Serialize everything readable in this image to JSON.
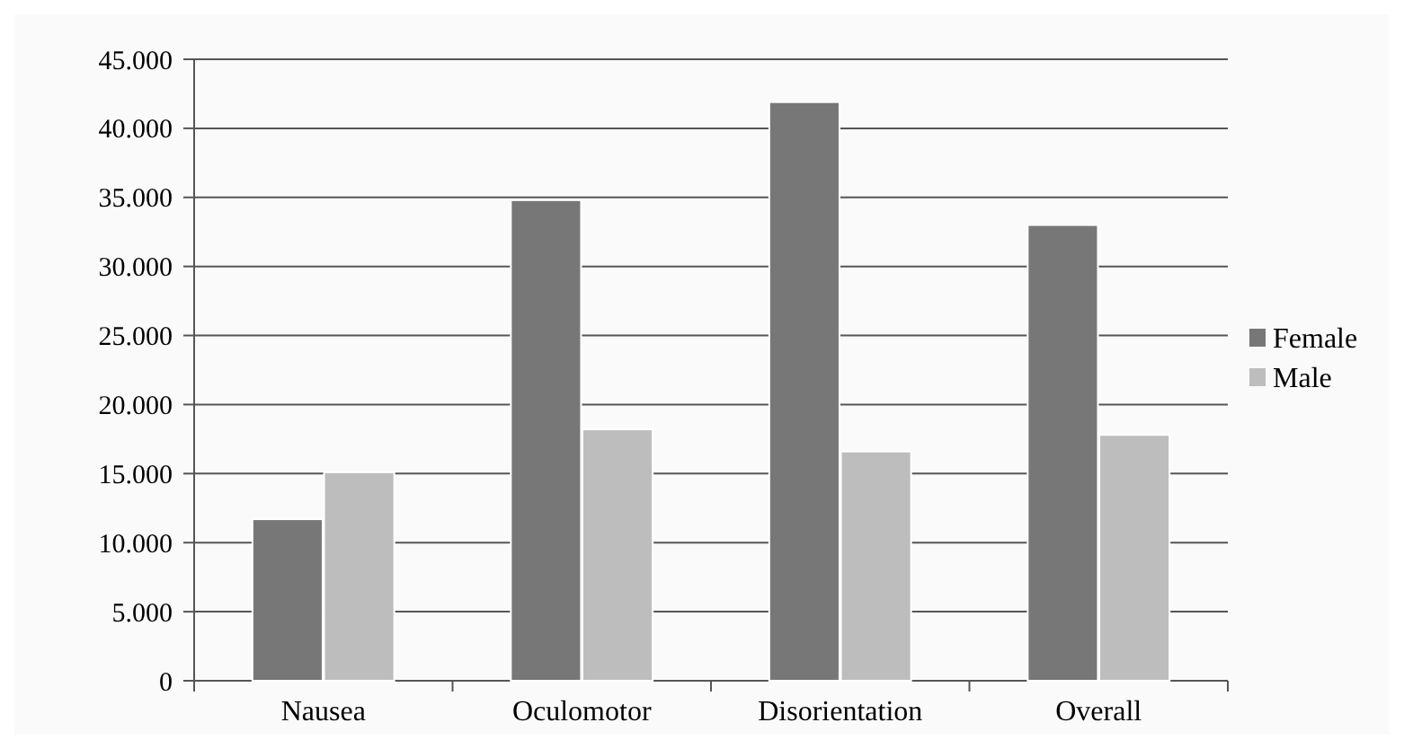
{
  "chart_data": {
    "type": "bar",
    "categories": [
      "Nausea",
      "Oculomotor",
      "Disorientation",
      "Overall"
    ],
    "series": [
      {
        "name": "Female",
        "color": "#777777",
        "values": [
          11700,
          34800,
          41900,
          33000
        ]
      },
      {
        "name": "Male",
        "color": "#bdbdbd",
        "values": [
          15100,
          18200,
          16600,
          17800
        ]
      }
    ],
    "ylim": [
      0,
      45000
    ],
    "yticks": [
      0,
      {
        "value": 5000,
        "label": "5.000"
      },
      {
        "value": 10000,
        "label": "10.000"
      },
      {
        "value": 15000,
        "label": "15.000"
      },
      {
        "value": 20000,
        "label": "20.000"
      },
      {
        "value": 25000,
        "label": "25.000"
      },
      {
        "value": 30000,
        "label": "30.000"
      },
      {
        "value": 35000,
        "label": "35.000"
      },
      {
        "value": 40000,
        "label": "40.000"
      },
      {
        "value": 45000,
        "label": "45.000"
      }
    ],
    "grid": "y",
    "legend": "right"
  }
}
